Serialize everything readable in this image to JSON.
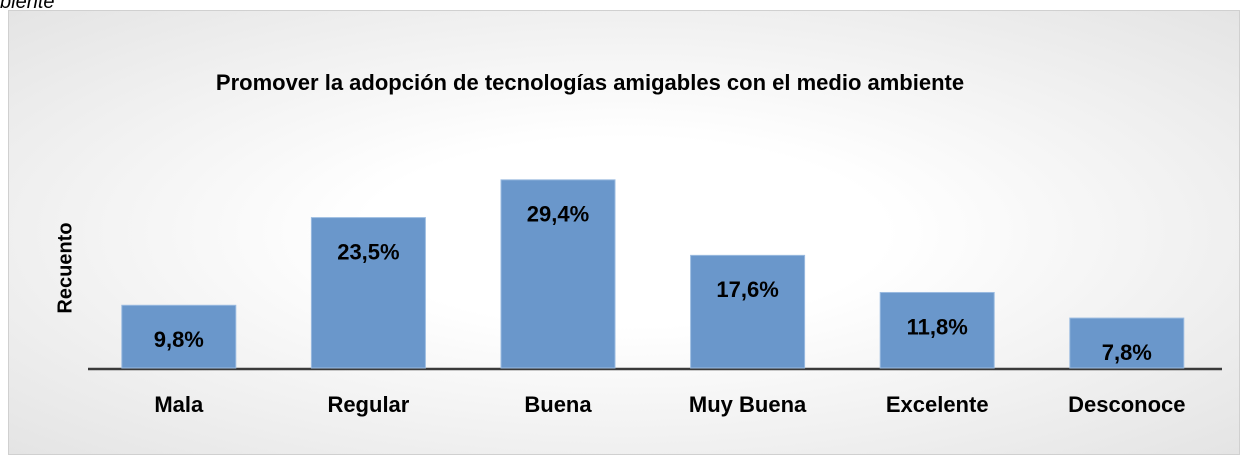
{
  "caption": "biente",
  "chart_data": {
    "type": "bar",
    "title": "Promover la adopción de tecnologías amigables con el medio ambiente",
    "ylabel": "Recuento",
    "categories": [
      "Mala",
      "Regular",
      "Buena",
      "Muy Buena",
      "Excelente",
      "Desconoce"
    ],
    "values": [
      9.8,
      23.5,
      29.4,
      17.6,
      11.8,
      7.8
    ],
    "value_labels": [
      "9,8%",
      "23,5%",
      "29,4%",
      "17,6%",
      "11,8%",
      "7,8%"
    ],
    "color": "#6a97cb"
  }
}
